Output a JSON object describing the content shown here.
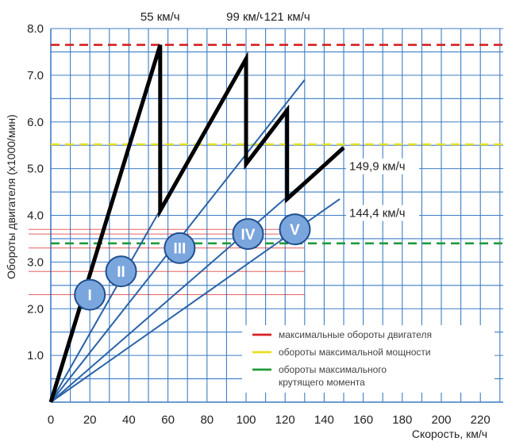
{
  "chart_data": {
    "type": "line",
    "xlabel": "Скорость, км/ч",
    "ylabel": "Обороты двигателя (x1000/мин)",
    "xlim": [
      0,
      230
    ],
    "ylim": [
      0,
      8.0
    ],
    "x_ticks": [
      "0",
      "20",
      "40",
      "60",
      "80",
      "100",
      "120",
      "140",
      "160",
      "180",
      "200",
      "220"
    ],
    "y_ticks": [
      "1.0",
      "2.0",
      "3.0",
      "4.0",
      "5.0",
      "6.0",
      "7.0",
      "8.0"
    ],
    "grid": true,
    "reference_lines": [
      {
        "name": "максимальные обороты двигателя",
        "y": 7.65,
        "color": "#d62020"
      },
      {
        "name": "обороты максимальной мощности",
        "y": 5.52,
        "color": "#e6e020"
      },
      {
        "name": "обороты максимального крутящего момента",
        "y": 3.4,
        "color": "#1f9a3c"
      }
    ],
    "gear_lines": [
      {
        "name": "I",
        "x": [
          0,
          56
        ],
        "y": [
          0,
          7.65
        ],
        "label_at": [
          20,
          2.3
        ]
      },
      {
        "name": "II",
        "x": [
          0,
          100
        ],
        "y": [
          0,
          7.35
        ],
        "label_at": [
          36,
          2.8
        ]
      },
      {
        "name": "III",
        "x": [
          0,
          130
        ],
        "y": [
          0,
          6.9
        ],
        "label_at": [
          66,
          3.3
        ]
      },
      {
        "name": "IV",
        "x": [
          0,
          150
        ],
        "y": [
          0,
          5.45
        ],
        "label_at": [
          101,
          3.6
        ]
      },
      {
        "name": "V",
        "x": [
          0,
          148
        ],
        "y": [
          0,
          4.35
        ],
        "label_at": [
          125,
          3.7
        ]
      }
    ],
    "shift_path": {
      "x": [
        0,
        56,
        56,
        100,
        100,
        121,
        121,
        150
      ],
      "y": [
        0,
        7.65,
        4.1,
        7.35,
        5.1,
        6.25,
        4.35,
        5.45
      ]
    },
    "annotations": [
      {
        "text": "55 км/ч",
        "x": 56
      },
      {
        "text": "99 км/ч",
        "x": 100
      },
      {
        "text": "121 км/ч",
        "x": 121
      },
      {
        "text": "149,9 км/ч",
        "y": 5.05
      },
      {
        "text": "144,4 км/ч",
        "y": 4.05
      }
    ],
    "legend": {
      "placement": "bottom-right",
      "entries": [
        {
          "text": "максимальные обороты двигателя",
          "color": "#d62020"
        },
        {
          "text": "обороты максимальной мощности",
          "color": "#e6e020"
        },
        {
          "text": "обороты максимального",
          "text2": "крутящего момента",
          "color": "#1f9a3c"
        }
      ]
    },
    "colors": {
      "grid": "#3d7dc6",
      "gear_line": "#2a63a8",
      "shift_path": "#000000",
      "badge_fill": "#7aa6dd",
      "badge_stroke": "#1f4f8f"
    }
  }
}
